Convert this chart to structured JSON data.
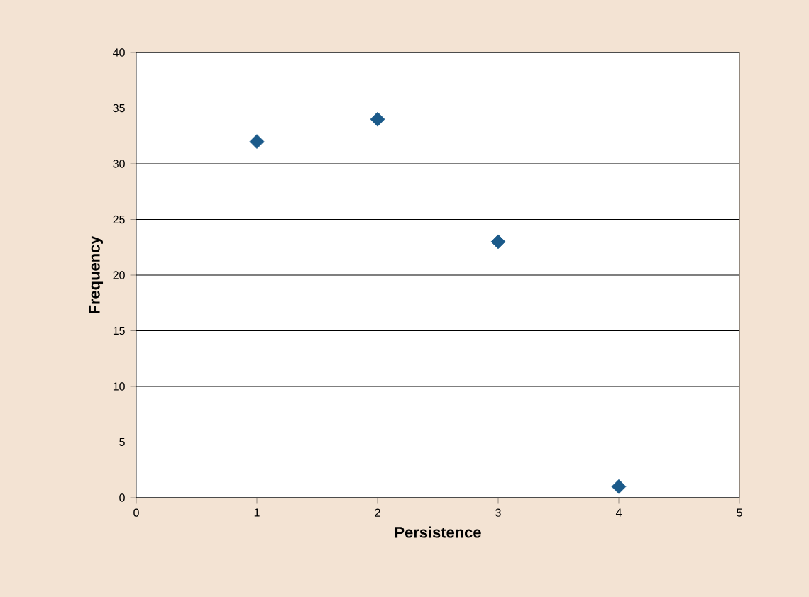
{
  "chart_data": {
    "type": "scatter",
    "xlabel": "Persistence",
    "ylabel": "Frequency",
    "x": [
      1,
      2,
      3,
      4
    ],
    "values": [
      32,
      34,
      23,
      1
    ],
    "color": "#1b5a8a",
    "marker": "diamond",
    "grid": "y",
    "xlim": [
      0,
      5
    ],
    "ylim": [
      0,
      40
    ],
    "xticks": [
      0,
      1,
      2,
      3,
      4,
      5
    ],
    "yticks": [
      0,
      5,
      10,
      15,
      20,
      25,
      30,
      35,
      40
    ]
  }
}
